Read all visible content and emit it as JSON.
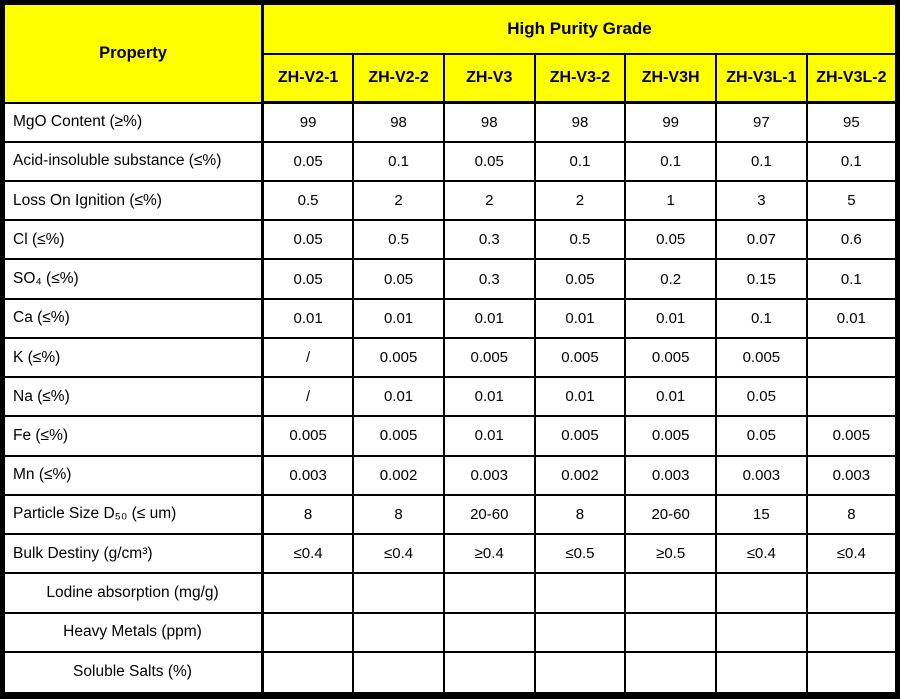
{
  "table": {
    "header": {
      "property_label": "Property",
      "group_label": "High Purity Grade",
      "columns": [
        "ZH-V2-1",
        "ZH-V2-2",
        "ZH-V3",
        "ZH-V3-2",
        "ZH-V3H",
        "ZH-V3L-1",
        "ZH-V3L-2"
      ]
    },
    "rows": [
      {
        "label": "MgO Content (≥%)",
        "align": "left",
        "values": [
          "99",
          "98",
          "98",
          "98",
          "99",
          "97",
          "95"
        ]
      },
      {
        "label": "Acid-insoluble substance (≤%)",
        "align": "left",
        "values": [
          "0.05",
          "0.1",
          "0.05",
          "0.1",
          "0.1",
          "0.1",
          "0.1"
        ]
      },
      {
        "label": "Loss On Ignition (≤%)",
        "align": "left",
        "values": [
          "0.5",
          "2",
          "2",
          "2",
          "1",
          "3",
          "5"
        ]
      },
      {
        "label": "Cl (≤%)",
        "align": "left",
        "values": [
          "0.05",
          "0.5",
          "0.3",
          "0.5",
          "0.05",
          "0.07",
          "0.6"
        ]
      },
      {
        "label": "SO₄ (≤%)",
        "align": "left",
        "values": [
          "0.05",
          "0.05",
          "0.3",
          "0.05",
          "0.2",
          "0.15",
          "0.1"
        ]
      },
      {
        "label": "Ca (≤%)",
        "align": "left",
        "values": [
          "0.01",
          "0.01",
          "0.01",
          "0.01",
          "0.01",
          "0.1",
          "0.01"
        ]
      },
      {
        "label": "K (≤%)",
        "align": "left",
        "values": [
          "/",
          "0.005",
          "0.005",
          "0.005",
          "0.005",
          "0.005",
          ""
        ]
      },
      {
        "label": "Na (≤%)",
        "align": "left",
        "values": [
          "/",
          "0.01",
          "0.01",
          "0.01",
          "0.01",
          "0.05",
          ""
        ]
      },
      {
        "label": "Fe (≤%)",
        "align": "left",
        "values": [
          "0.005",
          "0.005",
          "0.01",
          "0.005",
          "0.005",
          "0.05",
          "0.005"
        ]
      },
      {
        "label": "Mn (≤%)",
        "align": "left",
        "values": [
          "0.003",
          "0.002",
          "0.003",
          "0.002",
          "0.003",
          "0.003",
          "0.003"
        ]
      },
      {
        "label": "Particle Size D₅₀ (≤ um)",
        "align": "left",
        "values": [
          "8",
          "8",
          "20-60",
          "8",
          "20-60",
          "15",
          "8"
        ]
      },
      {
        "label": "Bulk Destiny (g/cm³)",
        "align": "left",
        "values": [
          "≤0.4",
          "≤0.4",
          "≥0.4",
          "≤0.5",
          "≥0.5",
          "≤0.4",
          "≤0.4"
        ]
      },
      {
        "label": "Lodine absorption (mg/g)",
        "align": "center",
        "values": [
          "",
          "",
          "",
          "",
          "",
          "",
          ""
        ]
      },
      {
        "label": "Heavy Metals (ppm)",
        "align": "center",
        "values": [
          "",
          "",
          "",
          "",
          "",
          "",
          ""
        ]
      },
      {
        "label": "Soluble Salts (%)",
        "align": "center",
        "values": [
          "",
          "",
          "",
          "",
          "",
          "",
          ""
        ]
      }
    ],
    "colors": {
      "header_bg": "#FFFF00",
      "border": "#000000",
      "cell_bg": "#FFFFFF",
      "text": "#000000"
    }
  }
}
